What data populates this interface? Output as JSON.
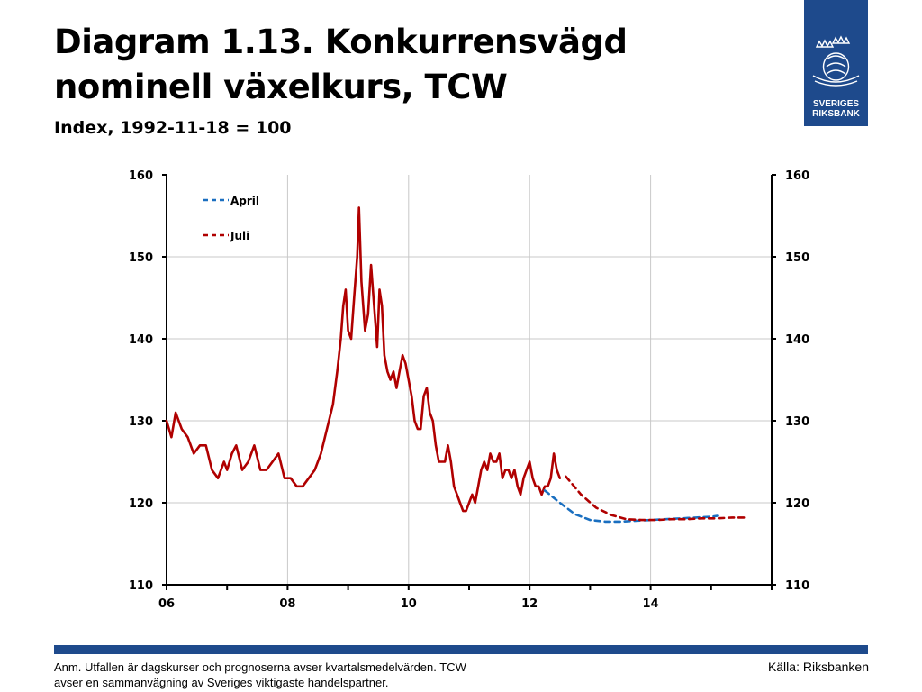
{
  "header": {
    "title_line1": "Diagram 1.13. Konkurrensvägd",
    "title_line2": "nominell växelkurs, TCW",
    "subtitle": "Index, 1992-11-18 = 100"
  },
  "logo": {
    "line1": "SVERIGES",
    "line2": "RIKSBANK"
  },
  "footer": {
    "note_line1": "Anm. Utfallen är dagskurser och prognoserna avser kvartalsmedelvärden. TCW",
    "note_line2": "avser en sammanvägning av Sveriges viktigaste handelspartner.",
    "source": "Källa: Riksbanken"
  },
  "colors": {
    "brand": "#1e4a8c",
    "actual": "#b00000",
    "april": "#1a6fc0",
    "juli": "#b00000",
    "grid": "#c8c8c8"
  },
  "chart_data": {
    "type": "line",
    "xlim": [
      2006.0,
      2016.0
    ],
    "ylim": [
      110,
      160
    ],
    "y_ticks": [
      110,
      120,
      130,
      140,
      150,
      160
    ],
    "x_ticks": [
      {
        "value": 2006,
        "label": "06"
      },
      {
        "value": 2008,
        "label": "08"
      },
      {
        "value": 2010,
        "label": "10"
      },
      {
        "value": 2012,
        "label": "12"
      },
      {
        "value": 2014,
        "label": "14"
      }
    ],
    "grid": true,
    "dual_y_axis": true,
    "legend_position": "top-left",
    "series": [
      {
        "style": "solid",
        "x": [
          2006.0,
          2006.08,
          2006.15,
          2006.25,
          2006.35,
          2006.45,
          2006.55,
          2006.65,
          2006.75,
          2006.85,
          2006.95,
          2007.0,
          2007.08,
          2007.15,
          2007.25,
          2007.35,
          2007.45,
          2007.55,
          2007.65,
          2007.75,
          2007.85,
          2007.95,
          2008.05,
          2008.15,
          2008.25,
          2008.35,
          2008.45,
          2008.55,
          2008.65,
          2008.75,
          2008.82,
          2008.88,
          2008.92,
          2008.96,
          2009.0,
          2009.05,
          2009.1,
          2009.15,
          2009.18,
          2009.22,
          2009.28,
          2009.33,
          2009.38,
          2009.43,
          2009.48,
          2009.52,
          2009.56,
          2009.6,
          2009.65,
          2009.7,
          2009.75,
          2009.8,
          2009.85,
          2009.9,
          2009.95,
          2010.0,
          2010.05,
          2010.1,
          2010.15,
          2010.2,
          2010.25,
          2010.3,
          2010.35,
          2010.4,
          2010.45,
          2010.5,
          2010.55,
          2010.6,
          2010.65,
          2010.7,
          2010.75,
          2010.8,
          2010.85,
          2010.9,
          2010.95,
          2011.0,
          2011.05,
          2011.1,
          2011.15,
          2011.2,
          2011.25,
          2011.3,
          2011.35,
          2011.4,
          2011.45,
          2011.5,
          2011.55,
          2011.6,
          2011.65,
          2011.7,
          2011.75,
          2011.8,
          2011.85,
          2011.9,
          2011.95,
          2012.0,
          2012.05,
          2012.1,
          2012.15,
          2012.2,
          2012.25,
          2012.3,
          2012.35,
          2012.4,
          2012.45,
          2012.5
        ],
        "values": [
          130,
          128,
          131,
          129,
          128,
          126,
          127,
          127,
          124,
          123,
          125,
          124,
          126,
          127,
          124,
          125,
          127,
          124,
          124,
          125,
          126,
          123,
          123,
          122,
          122,
          123,
          124,
          126,
          129,
          132,
          136,
          140,
          144,
          146,
          141,
          140,
          145,
          150,
          156,
          147,
          141,
          143,
          149,
          144,
          139,
          146,
          144,
          138,
          136,
          135,
          136,
          134,
          136,
          138,
          137,
          135,
          133,
          130,
          129,
          129,
          133,
          134,
          131,
          130,
          127,
          125,
          125,
          125,
          127,
          125,
          122,
          121,
          120,
          119,
          119,
          120,
          121,
          120,
          122,
          124,
          125,
          124,
          126,
          125,
          125,
          126,
          123,
          124,
          124,
          123,
          124,
          122,
          121,
          123,
          124,
          125,
          123,
          122,
          122,
          121,
          122,
          122,
          123,
          126,
          124,
          123
        ]
      },
      {
        "name": "April",
        "style": "dashed",
        "x": [
          2012.25,
          2012.5,
          2012.75,
          2013.0,
          2013.25,
          2013.5,
          2013.75,
          2014.0,
          2014.25,
          2014.5,
          2014.75,
          2015.0,
          2015.1
        ],
        "values": [
          121.5,
          120.0,
          118.6,
          117.9,
          117.7,
          117.7,
          117.8,
          117.9,
          118.0,
          118.1,
          118.2,
          118.3,
          118.4
        ]
      },
      {
        "name": "Juli",
        "style": "dashed",
        "x": [
          2012.6,
          2012.85,
          2013.1,
          2013.35,
          2013.6,
          2013.85,
          2014.1,
          2014.35,
          2014.6,
          2014.85,
          2015.1,
          2015.35,
          2015.6
        ],
        "values": [
          123.2,
          121.0,
          119.4,
          118.5,
          118.0,
          117.9,
          117.9,
          118.0,
          118.0,
          118.1,
          118.1,
          118.2,
          118.2
        ]
      }
    ]
  }
}
